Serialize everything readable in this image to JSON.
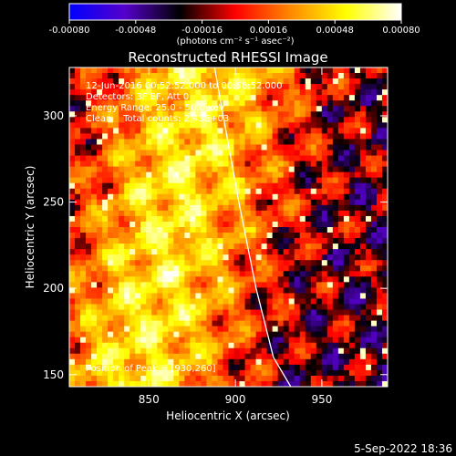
{
  "colorbar": {
    "tick_labels": [
      "-0.00080",
      "-0.00048",
      "-0.00016",
      "0.00016",
      "0.00048",
      "0.00080"
    ],
    "units_label": "(photons cm⁻² s⁻¹ asec⁻²)",
    "range": [
      -0.0008,
      0.0008
    ],
    "colormap": [
      "#0000ff",
      "#5500cc",
      "#000000",
      "#ff0000",
      "#ff8800",
      "#ffff00",
      "#ffffff"
    ]
  },
  "chart_data": {
    "type": "heatmap",
    "title": "Reconstructed RHESSI Image",
    "xlabel": "Heliocentric X (arcsec)",
    "ylabel": "Heliocentric Y (arcsec)",
    "xlim": [
      804,
      988
    ],
    "ylim": [
      143,
      328
    ],
    "xticks": [
      850,
      900,
      950
    ],
    "yticks": [
      150,
      200,
      250,
      300
    ],
    "xtick_labels": [
      "850",
      "900",
      "950"
    ],
    "ytick_labels": [
      "150",
      "200",
      "250",
      "300"
    ],
    "annotations": [
      "12-Jun-2016 00:52:52.000 to 00:58:52.000",
      "Detectors: 3F 8F, Att 0",
      "Energy Range: 25.0 - 50.0 keV",
      "Clean    Total counts: 2.43E+03"
    ],
    "peak_label": "Position of Peak = [930,260]",
    "limb_points": [
      [
        888,
        328
      ],
      [
        893,
        300
      ],
      [
        902,
        250
      ],
      [
        912,
        200
      ],
      [
        922,
        160
      ],
      [
        932,
        143
      ]
    ],
    "limb_color": "#ffffff"
  },
  "footer": {
    "date": "5-Sep-2022 18:36"
  }
}
